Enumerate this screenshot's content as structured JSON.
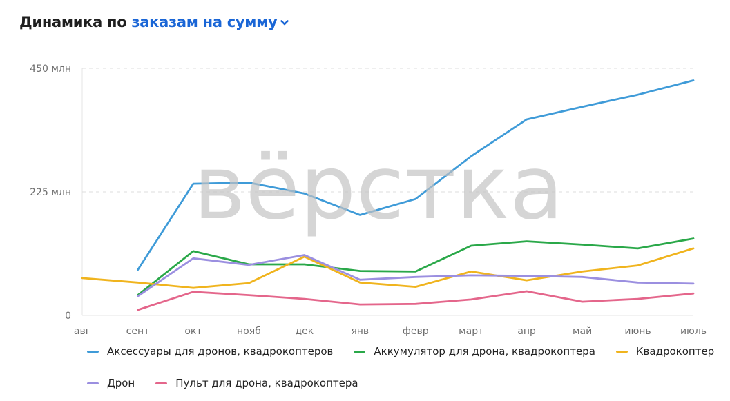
{
  "header": {
    "prefix": "Динамика по",
    "metric": "заказам на сумму"
  },
  "watermark": "вёрстка",
  "chart_data": {
    "type": "line",
    "x": [
      "авг",
      "сент",
      "окт",
      "нояб",
      "дек",
      "янв",
      "февр",
      "март",
      "апр",
      "май",
      "июнь",
      "июль"
    ],
    "ylim": [
      0,
      450
    ],
    "yticks": [
      0,
      225,
      450
    ],
    "ytick_labels": [
      "0",
      "225 млн",
      "450 млн"
    ],
    "grid": true,
    "legend_position": "bottom",
    "series": [
      {
        "name": "Аксессуары для дронов, квадрокоптеров",
        "color": "#3f9bd8",
        "values": [
          null,
          83,
          240,
          242,
          222,
          183,
          212,
          290,
          357,
          380,
          402,
          428
        ]
      },
      {
        "name": "Аккумулятор для дрона, квадрокоптера",
        "color": "#2aa849",
        "values": [
          null,
          37,
          117,
          93,
          93,
          81,
          80,
          127,
          135,
          129,
          122,
          140
        ]
      },
      {
        "name": "Квадрокоптер",
        "color": "#f0b41e",
        "values": [
          68,
          60,
          50,
          59,
          107,
          60,
          52,
          80,
          64,
          80,
          91,
          122
        ]
      },
      {
        "name": "Дрон",
        "color": "#9b8fe0",
        "values": [
          null,
          35,
          104,
          92,
          110,
          65,
          70,
          73,
          72,
          70,
          60,
          58
        ]
      },
      {
        "name": "Пульт для дрона, квадрокоптера",
        "color": "#e4668b",
        "values": [
          null,
          10,
          43,
          37,
          30,
          20,
          21,
          29,
          44,
          25,
          30,
          40
        ]
      }
    ]
  }
}
